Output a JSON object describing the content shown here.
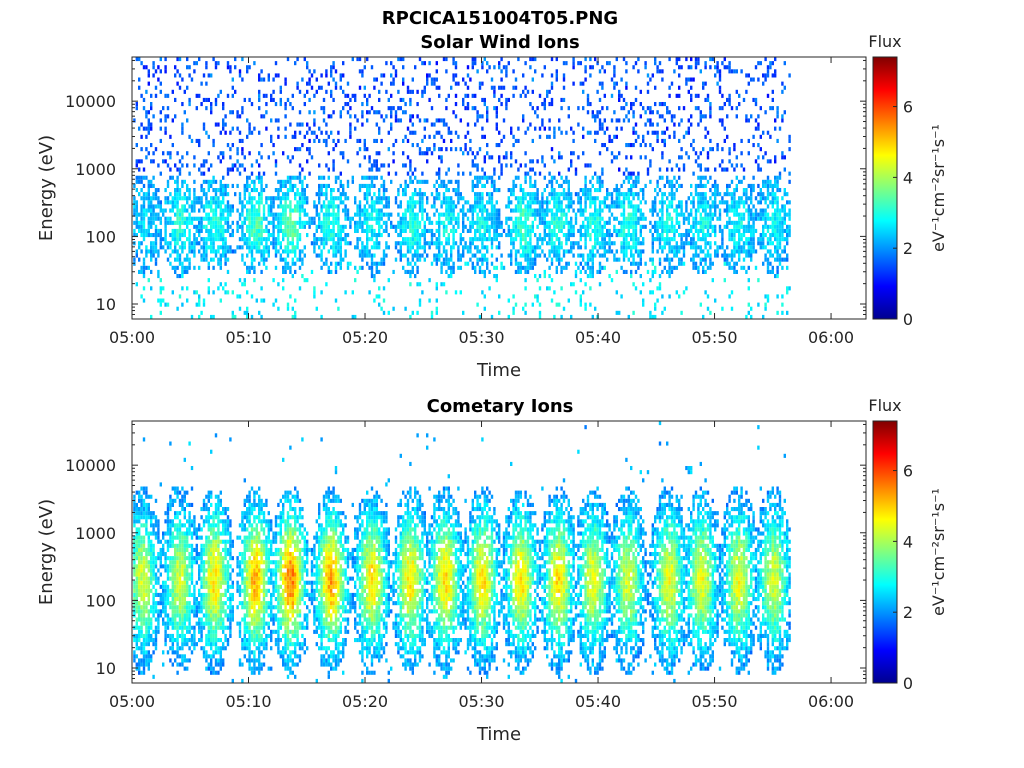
{
  "figure_title": "RPCICA151004T05.PNG",
  "colormap": [
    "#00008f",
    "#0000ff",
    "#0080ff",
    "#00ffff",
    "#80ff80",
    "#ffff00",
    "#ff8000",
    "#ff0000",
    "#800000"
  ],
  "chart_data": [
    {
      "type": "heatmap",
      "title": "Solar Wind Ions",
      "xlabel": "Time",
      "ylabel": "Energy (eV)",
      "x_ticks": [
        "05:00",
        "05:10",
        "05:20",
        "05:30",
        "05:40",
        "05:50",
        "06:00"
      ],
      "x_range_minutes": [
        0,
        63
      ],
      "data_end_minute": 56.5,
      "y_scale": "log",
      "y_ticks": [
        "10",
        "100",
        "1000",
        "10000"
      ],
      "y_range_eV": [
        6,
        45000
      ],
      "colorbar": {
        "title": "Flux",
        "unit": "eV⁻¹cm⁻²sr⁻¹s⁻¹",
        "ticks": [
          "0",
          "2",
          "4",
          "6"
        ],
        "range": [
          0,
          7.4
        ]
      },
      "burst_centers_minutes": [
        1,
        4,
        7,
        10.5,
        13.5,
        17,
        20.5,
        24,
        27,
        30,
        33.5,
        36.5,
        39.5,
        42.5,
        46,
        49,
        52,
        55
      ],
      "burst_peak_flux": [
        2.5,
        3,
        3,
        3.3,
        3.5,
        3,
        2.8,
        3,
        2.8,
        2.8,
        3.2,
        3,
        3,
        3,
        2.8,
        2.8,
        2.8,
        2.8
      ],
      "burst_energy_range_eV": [
        40,
        600
      ],
      "background_flux": 1.5
    },
    {
      "type": "heatmap",
      "title": "Cometary Ions",
      "xlabel": "Time",
      "ylabel": "Energy (eV)",
      "x_ticks": [
        "05:00",
        "05:10",
        "05:20",
        "05:30",
        "05:40",
        "05:50",
        "06:00"
      ],
      "x_range_minutes": [
        0,
        63
      ],
      "data_end_minute": 56.5,
      "y_scale": "log",
      "y_ticks": [
        "10",
        "100",
        "1000",
        "10000"
      ],
      "y_range_eV": [
        6,
        45000
      ],
      "colorbar": {
        "title": "Flux",
        "unit": "eV⁻¹cm⁻²sr⁻¹s⁻¹",
        "ticks": [
          "0",
          "2",
          "4",
          "6"
        ],
        "range": [
          0,
          7.4
        ]
      },
      "burst_centers_minutes": [
        0.8,
        4,
        7,
        10.5,
        13.5,
        17,
        20.5,
        23.8,
        26.8,
        30,
        33.3,
        36.5,
        39.5,
        42.5,
        46,
        48.8,
        52,
        55
      ],
      "burst_peak_flux": [
        4.3,
        4.3,
        4.8,
        5.2,
        5.6,
        5.3,
        4.8,
        4.8,
        4.9,
        4.8,
        4.8,
        4.8,
        4.5,
        4.3,
        4.5,
        4.5,
        4.5,
        4.3
      ],
      "burst_energy_range_eV": [
        20,
        2000
      ],
      "background_flux": 1.8
    }
  ]
}
